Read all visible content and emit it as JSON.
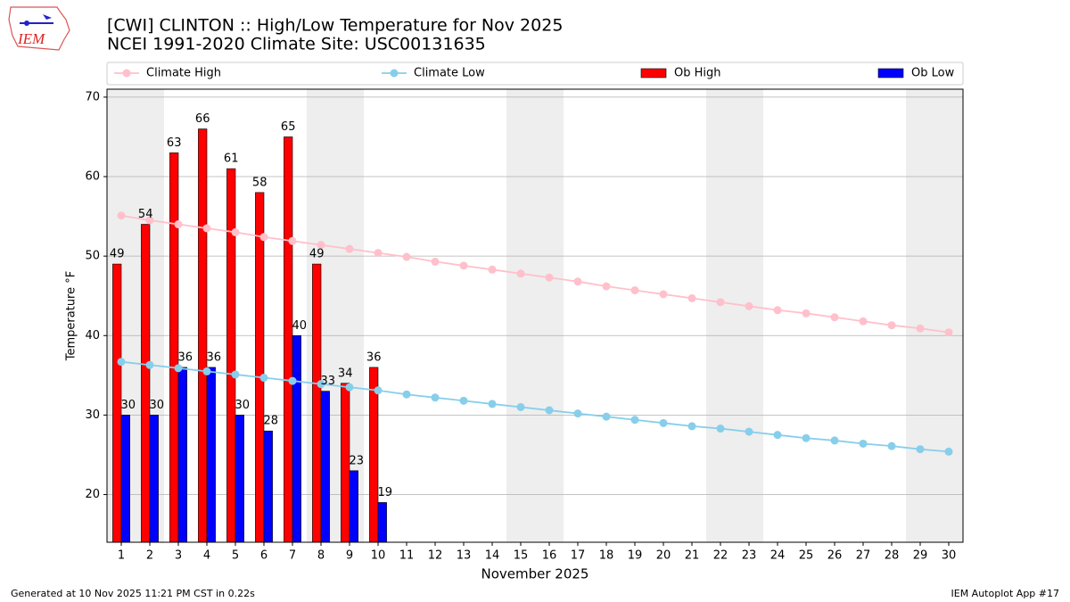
{
  "chart_data": {
    "type": "bar",
    "title": "[CWI] CLINTON :: High/Low Temperature for Nov 2025",
    "subtitle": "NCEI 1991-2020 Climate Site: USC00131635",
    "y_label": "Temperature °F",
    "x_label": "November 2025",
    "footer_left": "Generated at 10 Nov 2025 11:21 PM CST in 0.22s",
    "footer_right": "IEM Autoplot App #17",
    "logo_text": "IEM",
    "categories": [
      "1",
      "2",
      "3",
      "4",
      "5",
      "6",
      "7",
      "8",
      "9",
      "10",
      "11",
      "12",
      "13",
      "14",
      "15",
      "16",
      "17",
      "18",
      "19",
      "20",
      "21",
      "22",
      "23",
      "24",
      "25",
      "26",
      "27",
      "28",
      "29",
      "30"
    ],
    "series": [
      {
        "name": "Climate High",
        "type": "line",
        "color": "#ffc0cb",
        "values": [
          55.1,
          54.5,
          54.0,
          53.5,
          53.0,
          52.4,
          51.9,
          51.4,
          50.9,
          50.4,
          49.9,
          49.3,
          48.8,
          48.3,
          47.8,
          47.3,
          46.8,
          46.2,
          45.7,
          45.2,
          44.7,
          44.2,
          43.7,
          43.2,
          42.8,
          42.3,
          41.8,
          41.3,
          40.9,
          40.4
        ]
      },
      {
        "name": "Climate Low",
        "type": "line",
        "color": "#87ceeb",
        "values": [
          36.7,
          36.3,
          35.9,
          35.5,
          35.1,
          34.7,
          34.3,
          33.9,
          33.5,
          33.1,
          32.6,
          32.2,
          31.8,
          31.4,
          31.0,
          30.6,
          30.2,
          29.8,
          29.4,
          29.0,
          28.6,
          28.3,
          27.9,
          27.5,
          27.1,
          26.8,
          26.4,
          26.1,
          25.7,
          25.4
        ]
      },
      {
        "name": "Ob High",
        "type": "bar",
        "color": "#ff0000",
        "values": [
          49,
          54,
          63,
          66,
          61,
          58,
          65,
          49,
          34,
          36,
          null,
          null,
          null,
          null,
          null,
          null,
          null,
          null,
          null,
          null,
          null,
          null,
          null,
          null,
          null,
          null,
          null,
          null,
          null,
          null
        ]
      },
      {
        "name": "Ob Low",
        "type": "bar",
        "color": "#0000ff",
        "values": [
          30,
          30,
          36,
          36,
          30,
          28,
          40,
          33,
          23,
          19,
          null,
          null,
          null,
          null,
          null,
          null,
          null,
          null,
          null,
          null,
          null,
          null,
          null,
          null,
          null,
          null,
          null,
          null,
          null,
          null
        ]
      }
    ],
    "ylim": [
      14,
      71
    ],
    "yticks": [
      20,
      30,
      40,
      50,
      60,
      70
    ],
    "grid": true,
    "legend": "top"
  }
}
